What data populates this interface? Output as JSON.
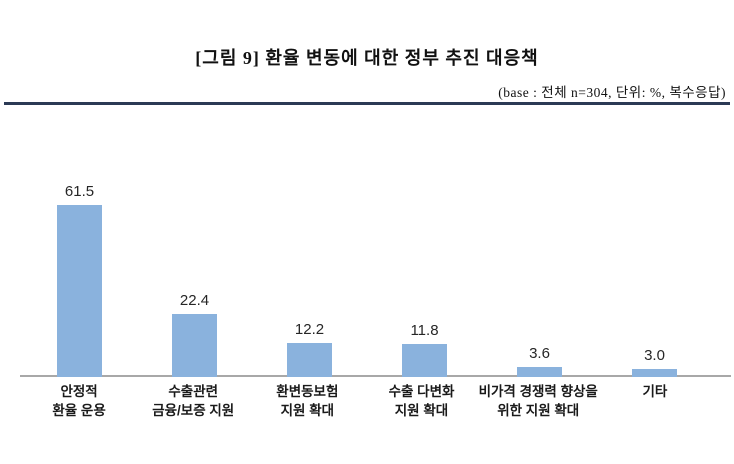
{
  "figure": {
    "title": "[그림 9] 환율 변동에 대한 정부 추진 대응책",
    "subtitle": "(base : 전체 n=304, 단위: %, 복수응답)"
  },
  "colors": {
    "bar": "#8AB2DD",
    "baseline": "#A8A8A8",
    "header_rule": "#2B3A55"
  },
  "chart_data": {
    "type": "bar",
    "title": "[그림 9] 환율 변동에 대한 정부 추진 대응책",
    "subtitle": "(base : 전체 n=304, 단위: %, 복수응답)",
    "categories": [
      [
        "안정적",
        "환율 운용"
      ],
      [
        "수출관련",
        "금융/보증 지원"
      ],
      [
        "환변동보험",
        "지원 확대"
      ],
      [
        "수출 다변화",
        "지원 확대"
      ],
      [
        "비가격 경쟁력 향상을",
        "위한 지원 확대"
      ],
      [
        "기타"
      ]
    ],
    "values": [
      61.5,
      22.4,
      12.2,
      11.8,
      3.6,
      3.0
    ],
    "value_labels": [
      "61.5",
      "22.4",
      "12.2",
      "11.8",
      "3.6",
      "3.0"
    ],
    "unit": "%",
    "base_n": 304,
    "ylim": [
      0,
      70
    ],
    "grid": false,
    "legend": false,
    "bar_color": "#8AB2DD",
    "axis_line_color": "#A8A8A8"
  }
}
